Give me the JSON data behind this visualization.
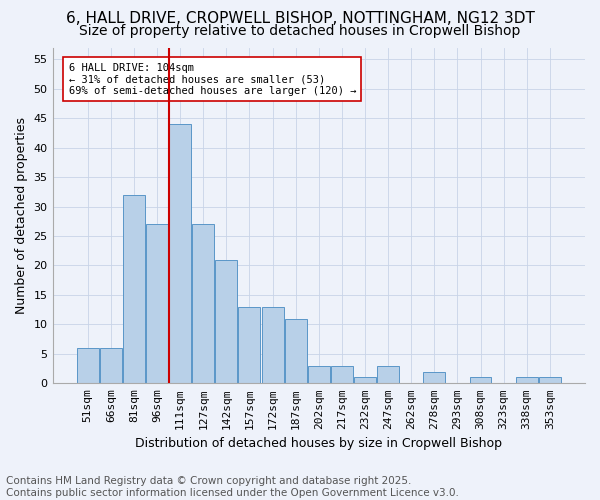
{
  "title": "6, HALL DRIVE, CROPWELL BISHOP, NOTTINGHAM, NG12 3DT",
  "subtitle": "Size of property relative to detached houses in Cropwell Bishop",
  "xlabel": "Distribution of detached houses by size in Cropwell Bishop",
  "ylabel": "Number of detached properties",
  "bar_values": [
    6,
    6,
    32,
    27,
    44,
    27,
    21,
    13,
    13,
    11,
    3,
    3,
    1,
    3,
    0,
    2,
    0,
    1,
    0,
    1,
    1
  ],
  "bar_labels": [
    "51sqm",
    "66sqm",
    "81sqm",
    "96sqm",
    "111sqm",
    "127sqm",
    "142sqm",
    "157sqm",
    "172sqm",
    "187sqm",
    "202sqm",
    "217sqm",
    "232sqm",
    "247sqm",
    "262sqm",
    "278sqm",
    "293sqm",
    "308sqm",
    "323sqm",
    "338sqm",
    "353sqm"
  ],
  "bar_color": "#b8d0e8",
  "bar_edge_color": "#5a96c8",
  "vline_x": 3.5,
  "vline_color": "#cc0000",
  "annotation_text": "6 HALL DRIVE: 104sqm\n← 31% of detached houses are smaller (53)\n69% of semi-detached houses are larger (120) →",
  "annotation_box_color": "#ffffff",
  "annotation_box_edge": "#cc0000",
  "ylim": [
    0,
    57
  ],
  "yticks": [
    0,
    5,
    10,
    15,
    20,
    25,
    30,
    35,
    40,
    45,
    50,
    55
  ],
  "footer1": "Contains HM Land Registry data © Crown copyright and database right 2025.",
  "footer2": "Contains public sector information licensed under the Open Government Licence v3.0.",
  "background_color": "#eef2fa",
  "title_fontsize": 11,
  "subtitle_fontsize": 10,
  "axis_fontsize": 9,
  "tick_fontsize": 8,
  "footer_fontsize": 7.5
}
